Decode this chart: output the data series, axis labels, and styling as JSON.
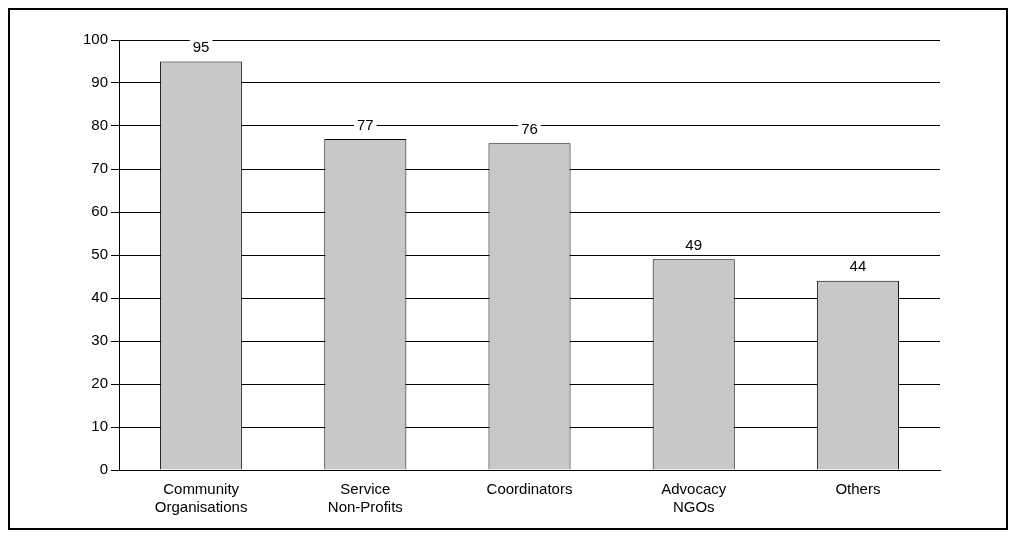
{
  "chart_data": {
    "type": "bar",
    "categories": [
      "Community Organisations",
      "Service Non-Profits",
      "Coordinators",
      "Advocacy NGOs",
      "Others"
    ],
    "values": [
      95,
      77,
      76,
      49,
      44
    ],
    "color": "#c8c8c8",
    "ylim": [
      0,
      100
    ],
    "yticks": [
      0,
      10,
      20,
      30,
      40,
      50,
      60,
      70,
      80,
      90,
      100
    ],
    "grid": "y",
    "data_labels": true
  }
}
